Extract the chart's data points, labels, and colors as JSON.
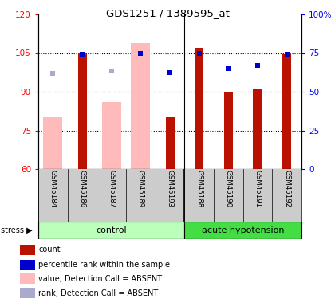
{
  "title": "GDS1251 / 1389595_at",
  "samples": [
    "GSM45184",
    "GSM45186",
    "GSM45187",
    "GSM45189",
    "GSM45193",
    "GSM45188",
    "GSM45190",
    "GSM45191",
    "GSM45192"
  ],
  "bar_values": [
    null,
    105.0,
    null,
    null,
    80.0,
    107.0,
    90.0,
    91.0,
    104.5
  ],
  "bar_absent_values": [
    80.0,
    null,
    86.0,
    109.0,
    null,
    null,
    null,
    null,
    null
  ],
  "rank_values": [
    null,
    74.0,
    null,
    74.5,
    62.5,
    75.0,
    65.0,
    67.0,
    74.0
  ],
  "rank_absent_values": [
    62.0,
    null,
    63.5,
    null,
    null,
    null,
    null,
    null,
    null
  ],
  "ylim_left": [
    60,
    120
  ],
  "ylim_right": [
    0,
    100
  ],
  "yticks_left": [
    60,
    75,
    90,
    105,
    120
  ],
  "yticks_right": [
    0,
    25,
    50,
    75,
    100
  ],
  "ytick_labels_left": [
    "60",
    "75",
    "90",
    "105",
    "120"
  ],
  "ytick_labels_right": [
    "0",
    "25",
    "50",
    "75",
    "100%"
  ],
  "bar_color": "#bb1100",
  "bar_absent_color": "#ffbbbb",
  "rank_color": "#0000cc",
  "rank_absent_color": "#aaaacc",
  "control_color": "#bbffbb",
  "hypo_color": "#44dd44",
  "tick_area_bg": "#cccccc",
  "legend_items": [
    {
      "color": "#bb1100",
      "label": "count"
    },
    {
      "color": "#0000cc",
      "label": "percentile rank within the sample"
    },
    {
      "color": "#ffbbbb",
      "label": "value, Detection Call = ABSENT"
    },
    {
      "color": "#aaaacc",
      "label": "rank, Detection Call = ABSENT"
    }
  ]
}
